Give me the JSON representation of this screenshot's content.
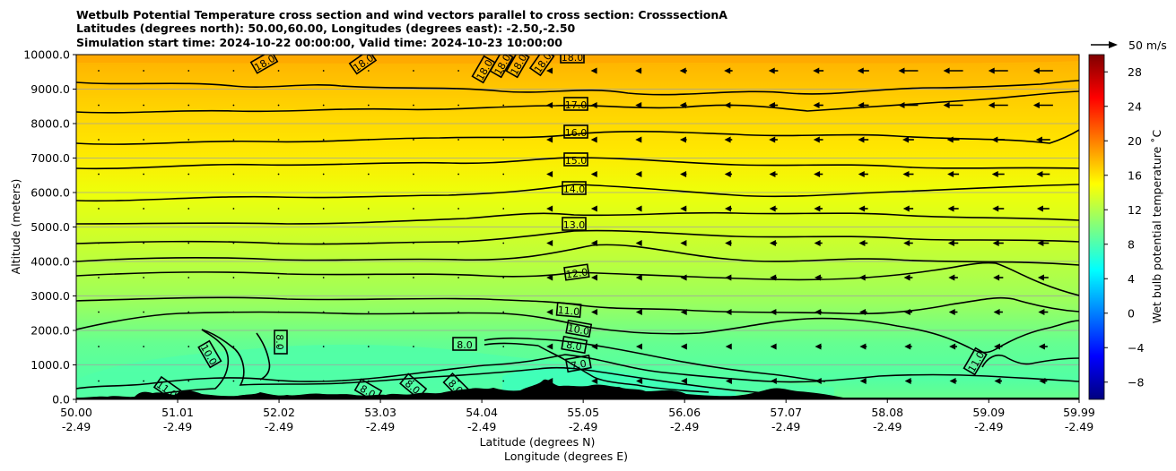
{
  "chart_data": {
    "type": "contour",
    "title_lines": [
      "Wetbulb Potential Temperature cross section and wind vectors parallel to cross section: CrosssectionA",
      "Latitudes (degrees north): 50.00,60.00, Longitudes (degrees east): -2.50,-2.50",
      "Simulation start time: 2024-10-22 00:00:00, Valid time: 2024-10-23 10:00:00"
    ],
    "xlabel": "Latitude (degrees N)",
    "xlabel2": "Longitude (degrees E)",
    "ylabel": "Altitude (meters)",
    "ylim": [
      0,
      10000
    ],
    "yticks": [
      "0.0",
      "1000.0",
      "2000.0",
      "3000.0",
      "4000.0",
      "5000.0",
      "6000.0",
      "7000.0",
      "8000.0",
      "9000.0",
      "10000.0"
    ],
    "xlim": [
      50.0,
      59.99
    ],
    "xticks_lat": [
      "50.00",
      "51.01",
      "52.02",
      "53.03",
      "54.04",
      "55.05",
      "56.06",
      "57.07",
      "58.08",
      "59.09",
      "59.99"
    ],
    "xticks_lon": [
      "-2.49",
      "-2.49",
      "-2.49",
      "-2.49",
      "-2.49",
      "-2.49",
      "-2.49",
      "-2.49",
      "-2.49",
      "-2.49",
      "-2.49"
    ],
    "colorbar": {
      "label": "Wet bulb potential temperature ˚C",
      "range": [
        -10,
        30
      ],
      "ticks": [
        "−8",
        "−4",
        "0",
        "4",
        "8",
        "12",
        "16",
        "20",
        "24",
        "28"
      ]
    },
    "quiver_key": "50 m/s",
    "contour_levels": [
      7.0,
      8.0,
      10.0,
      11.0,
      12.0,
      13.0,
      14.0,
      15.0,
      16.0,
      17.0,
      18.0
    ],
    "contour_labels": [
      "18.0",
      "18.0",
      "18.0",
      "18.0",
      "18.0",
      "18.0",
      "18.0",
      "17.0",
      "16.0",
      "15.0",
      "14.0",
      "13.0",
      "12.0",
      "11.0",
      "10.0",
      "8.0",
      "8.0",
      "8.0",
      "8.0",
      "8.0",
      "8.0",
      "7.0",
      "10.0",
      "11.0",
      "11.0"
    ]
  },
  "colors": {
    "cmap": [
      "#00007f",
      "#0000ff",
      "#007fff",
      "#00ffff",
      "#7fff7f",
      "#ffff00",
      "#ff7f00",
      "#ff0000",
      "#7f0000"
    ],
    "terrain": "#000000"
  }
}
